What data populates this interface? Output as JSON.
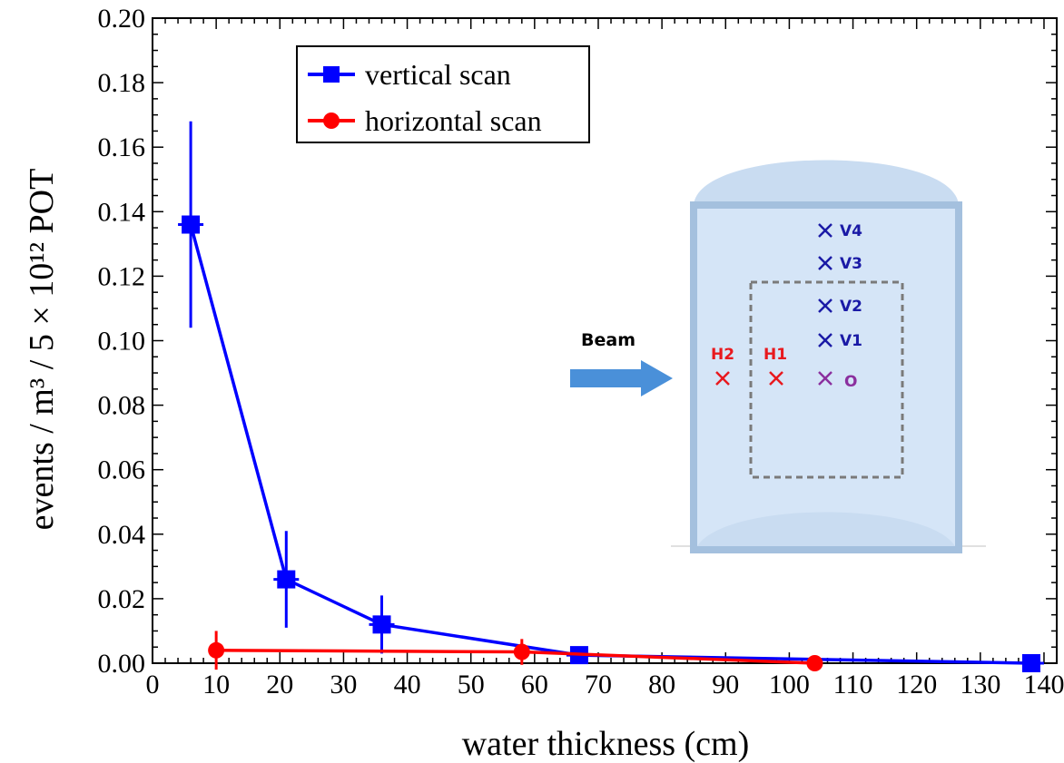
{
  "chart_data": {
    "type": "line",
    "xlabel": "water thickness (cm)",
    "ylabel": "events / m³ / 5 × 10¹² POT",
    "xlim": [
      0,
      142
    ],
    "ylim": [
      0,
      0.2
    ],
    "xticks": [
      0,
      10,
      20,
      30,
      40,
      50,
      60,
      70,
      80,
      90,
      100,
      110,
      120,
      130,
      140
    ],
    "yticks": [
      0.0,
      0.02,
      0.04,
      0.06,
      0.08,
      0.1,
      0.12,
      0.14,
      0.16,
      0.18,
      0.2
    ],
    "xtick_labels": [
      "0",
      "10",
      "20",
      "30",
      "40",
      "50",
      "60",
      "70",
      "80",
      "90",
      "100",
      "110",
      "120",
      "130",
      "140"
    ],
    "ytick_labels": [
      "0.00",
      "0.02",
      "0.04",
      "0.06",
      "0.08",
      "0.10",
      "0.12",
      "0.14",
      "0.16",
      "0.18",
      "0.20"
    ],
    "grid": false,
    "legend_position": "top-center",
    "series": [
      {
        "name": "vertical scan",
        "color": "#0000ff",
        "marker": "square",
        "x": [
          6,
          21,
          36,
          67,
          138
        ],
        "y": [
          0.136,
          0.026,
          0.012,
          0.0025,
          0.0
        ],
        "yerr": [
          0.032,
          0.015,
          0.009,
          0.0,
          0.0
        ]
      },
      {
        "name": "horizontal scan",
        "color": "#ff0000",
        "marker": "circle",
        "x": [
          10,
          58,
          104
        ],
        "y": [
          0.004,
          0.0035,
          0.0
        ],
        "yerr": [
          0.006,
          0.004,
          0.0
        ]
      }
    ]
  },
  "inset": {
    "beam_label": "Beam",
    "markers": [
      {
        "label": "V4",
        "color": "#1a1aa6"
      },
      {
        "label": "V3",
        "color": "#1a1aa6"
      },
      {
        "label": "V2",
        "color": "#1a1aa6"
      },
      {
        "label": "V1",
        "color": "#1a1aa6"
      },
      {
        "label": "O",
        "color": "#8b2f9e"
      },
      {
        "label": "H1",
        "color": "#e8191e"
      },
      {
        "label": "H2",
        "color": "#e8191e"
      }
    ]
  }
}
